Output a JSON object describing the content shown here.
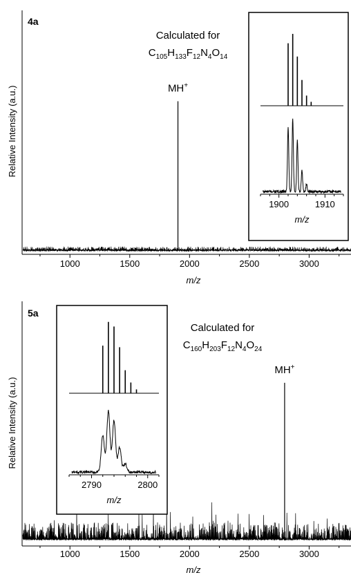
{
  "chart_data": [
    {
      "type": "line",
      "panel_label": "4a",
      "xlabel": "m/z",
      "ylabel": "Relative Intensity (a.u.)",
      "xlim": [
        600,
        3350
      ],
      "x_ticks": [
        1000,
        1500,
        2000,
        2500,
        3000
      ],
      "annotation": {
        "calc_text": "Calculated for",
        "formula": [
          {
            "t": "C"
          },
          {
            "t": "105",
            "sub": true
          },
          {
            "t": "H"
          },
          {
            "t": "133",
            "sub": true
          },
          {
            "t": "F"
          },
          {
            "t": "12",
            "sub": true
          },
          {
            "t": "N"
          },
          {
            "t": "4",
            "sub": true
          },
          {
            "t": "O"
          },
          {
            "t": "14",
            "sub": true
          }
        ]
      },
      "peak": {
        "label_base": "MH",
        "label_sup": "+",
        "x": 1903,
        "height": 0.68
      },
      "noise_level": 0.015,
      "inset": {
        "xlabel": "m/z",
        "xlim": [
          1896,
          1914
        ],
        "x_ticks": [
          1900,
          1910
        ],
        "calc_peaks": [
          [
            1902,
            0.8
          ],
          [
            1903,
            0.92
          ],
          [
            1904,
            0.63
          ],
          [
            1905,
            0.33
          ],
          [
            1906,
            0.13
          ],
          [
            1907,
            0.05
          ]
        ],
        "exp_peaks": [
          [
            1902,
            0.82
          ],
          [
            1903,
            0.93
          ],
          [
            1904,
            0.66
          ],
          [
            1905,
            0.28
          ],
          [
            1906,
            0.1
          ]
        ]
      }
    },
    {
      "type": "line",
      "panel_label": "5a",
      "xlabel": "m/z",
      "ylabel": "Relative Intensity (a.u.)",
      "xlim": [
        600,
        3350
      ],
      "x_ticks": [
        1000,
        1500,
        2000,
        2500,
        3000
      ],
      "annotation": {
        "calc_text": "Calculated for",
        "formula": [
          {
            "t": "C"
          },
          {
            "t": "160",
            "sub": true
          },
          {
            "t": "H"
          },
          {
            "t": "203",
            "sub": true
          },
          {
            "t": "F"
          },
          {
            "t": "12",
            "sub": true
          },
          {
            "t": "N"
          },
          {
            "t": "4",
            "sub": true
          },
          {
            "t": "O"
          },
          {
            "t": "24",
            "sub": true
          }
        ]
      },
      "peak": {
        "label_base": "MH",
        "label_sup": "+",
        "x": 2795,
        "height": 0.72
      },
      "noise_level": 0.07,
      "inset": {
        "xlabel": "m/z",
        "xlim": [
          2786,
          2802
        ],
        "x_ticks": [
          2790,
          2800
        ],
        "calc_peaks": [
          [
            2792,
            0.62
          ],
          [
            2793,
            0.93
          ],
          [
            2794,
            0.87
          ],
          [
            2795,
            0.6
          ],
          [
            2796,
            0.3
          ],
          [
            2797,
            0.14
          ],
          [
            2798,
            0.05
          ]
        ],
        "exp_peaks": [
          [
            2792,
            0.52
          ],
          [
            2793,
            0.87
          ],
          [
            2794,
            0.74
          ],
          [
            2795,
            0.35
          ],
          [
            2796,
            0.12
          ]
        ]
      }
    }
  ]
}
